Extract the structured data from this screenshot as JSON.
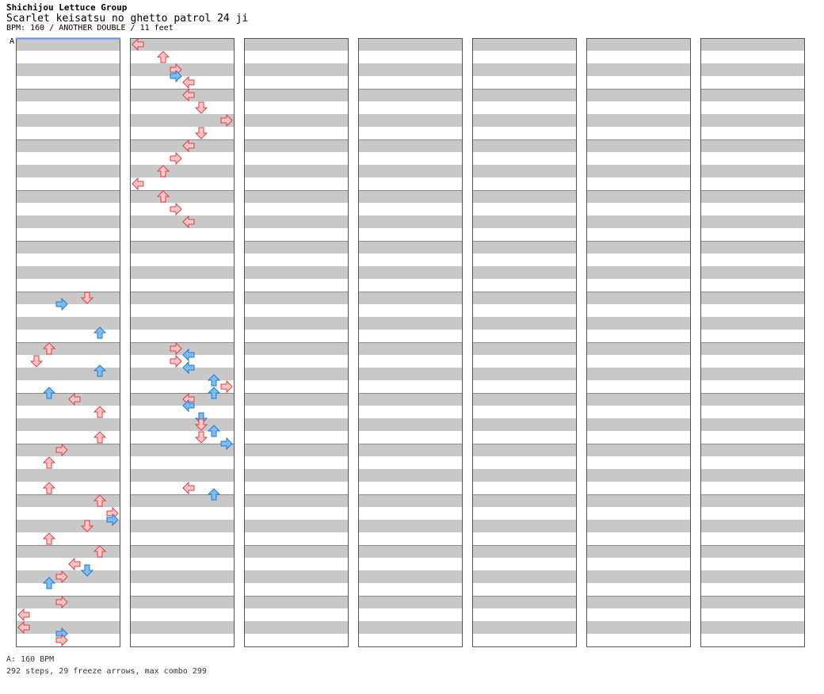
{
  "header": {
    "artist": "Shichijou Lettuce Group",
    "title": "Scarlet keisatsu no ghetto patrol 24 ji",
    "info": "BPM: 160 / ANOTHER DOUBLE / 11 feet"
  },
  "bpm_marker": "A",
  "footer": {
    "bpm_line": "A: 160 BPM",
    "stats_line": "292 steps, 29 freeze arrows, max combo 299"
  },
  "colors": {
    "red_arrow": "#ffc8c8",
    "red_edge": "#e03c3c",
    "blue_arrow": "#78bcf8",
    "blue_edge": "#2878c8",
    "freeze": "#c8f8c8",
    "freeze_edge": "#3c9c3c",
    "yellow_arrow": "#ffff50",
    "pink_arrow": "#ffb4ff"
  },
  "chart_data": {
    "type": "step-chart",
    "mode": "ANOTHER DOUBLE",
    "bpm": 160,
    "feet": 11,
    "lanes": [
      "L1",
      "D1",
      "U1",
      "R1",
      "L2",
      "D2",
      "U2",
      "R2"
    ],
    "columns": 7,
    "measures_per_column": 12,
    "beats_per_measure": 4,
    "totals": {
      "steps": 292,
      "freeze_arrows": 29,
      "max_combo": 299
    },
    "steps": [
      {
        "m": 5,
        "b": 0,
        "lane": 5
      },
      {
        "m": 5,
        "b": 0.5,
        "lane": 3
      },
      {
        "m": 5,
        "b": 2.75,
        "lane": 6
      },
      {
        "m": 6,
        "b": 0,
        "lane": 2
      },
      {
        "m": 6,
        "b": 1,
        "lane": 1
      },
      {
        "m": 6,
        "b": 1.75,
        "lane": 6
      },
      {
        "m": 6,
        "b": 3.5,
        "lane": 2
      },
      {
        "m": 7,
        "b": 0,
        "lane": 4
      },
      {
        "m": 7,
        "b": 1,
        "lane": 6
      },
      {
        "m": 7,
        "b": 3,
        "lane": 6
      },
      {
        "m": 8,
        "b": 0,
        "lane": 3
      },
      {
        "m": 8,
        "b": 1,
        "lane": 2
      },
      {
        "m": 8,
        "b": 3,
        "lane": 2
      },
      {
        "m": 9,
        "b": 0,
        "lane": 6
      },
      {
        "m": 9,
        "b": 1,
        "lane": 7
      },
      {
        "m": 9,
        "b": 1.5,
        "lane": 7
      },
      {
        "m": 9,
        "b": 2,
        "lane": 5
      },
      {
        "m": 9,
        "b": 3,
        "lane": 2
      },
      {
        "m": 10,
        "b": 0,
        "lane": 6
      },
      {
        "m": 10,
        "b": 1,
        "lane": 4
      },
      {
        "m": 10,
        "b": 1.5,
        "lane": 5
      },
      {
        "m": 10,
        "b": 2,
        "lane": 3
      },
      {
        "m": 10,
        "b": 2.5,
        "lane": 2
      },
      {
        "m": 11,
        "b": 0,
        "lane": 3
      },
      {
        "m": 11,
        "b": 1,
        "lane": 0
      },
      {
        "m": 11,
        "b": 2,
        "lane": 0
      },
      {
        "m": 11,
        "b": 2.5,
        "lane": 3
      },
      {
        "m": 11,
        "b": 3,
        "lane": 3
      },
      {
        "m": 12,
        "b": 0,
        "lane": 0
      },
      {
        "m": 12,
        "b": 1,
        "lane": 2
      },
      {
        "m": 12,
        "b": 2,
        "lane": 3
      },
      {
        "m": 12,
        "b": 2.5,
        "lane": 3
      },
      {
        "m": 12,
        "b": 3,
        "lane": 4
      },
      {
        "m": 13,
        "b": 0,
        "lane": 4
      },
      {
        "m": 13,
        "b": 1,
        "lane": 5
      },
      {
        "m": 13,
        "b": 2,
        "lane": 7
      },
      {
        "m": 13,
        "b": 3,
        "lane": 5
      },
      {
        "m": 14,
        "b": 0,
        "lane": 4
      },
      {
        "m": 14,
        "b": 1,
        "lane": 3
      },
      {
        "m": 14,
        "b": 2,
        "lane": 2
      },
      {
        "m": 14,
        "b": 3,
        "lane": 0
      },
      {
        "m": 15,
        "b": 0,
        "lane": 2
      },
      {
        "m": 15,
        "b": 1,
        "lane": 3
      },
      {
        "m": 15,
        "b": 2,
        "lane": 4
      },
      {
        "m": 18,
        "b": 0,
        "lane": 3
      },
      {
        "m": 18,
        "b": 0.5,
        "lane": 4
      },
      {
        "m": 18,
        "b": 1,
        "lane": 3
      },
      {
        "m": 18,
        "b": 1.5,
        "lane": 4
      },
      {
        "m": 18,
        "b": 2.5,
        "lane": 6
      },
      {
        "m": 18,
        "b": 3,
        "lane": 7
      },
      {
        "m": 18,
        "b": 3.5,
        "lane": 6
      },
      {
        "m": 19,
        "b": 0,
        "lane": 4
      },
      {
        "m": 19,
        "b": 0.5,
        "lane": 4
      },
      {
        "m": 19,
        "b": 1.5,
        "lane": 5
      },
      {
        "m": 19,
        "b": 2,
        "lane": 5
      },
      {
        "m": 19,
        "b": 2.5,
        "lane": 6
      },
      {
        "m": 19,
        "b": 3,
        "lane": 5
      },
      {
        "m": 19,
        "b": 3.5,
        "lane": 7
      },
      {
        "m": 20,
        "b": 3,
        "lane": 4
      },
      {
        "m": 20,
        "b": 3.5,
        "lane": 6
      }
    ]
  }
}
